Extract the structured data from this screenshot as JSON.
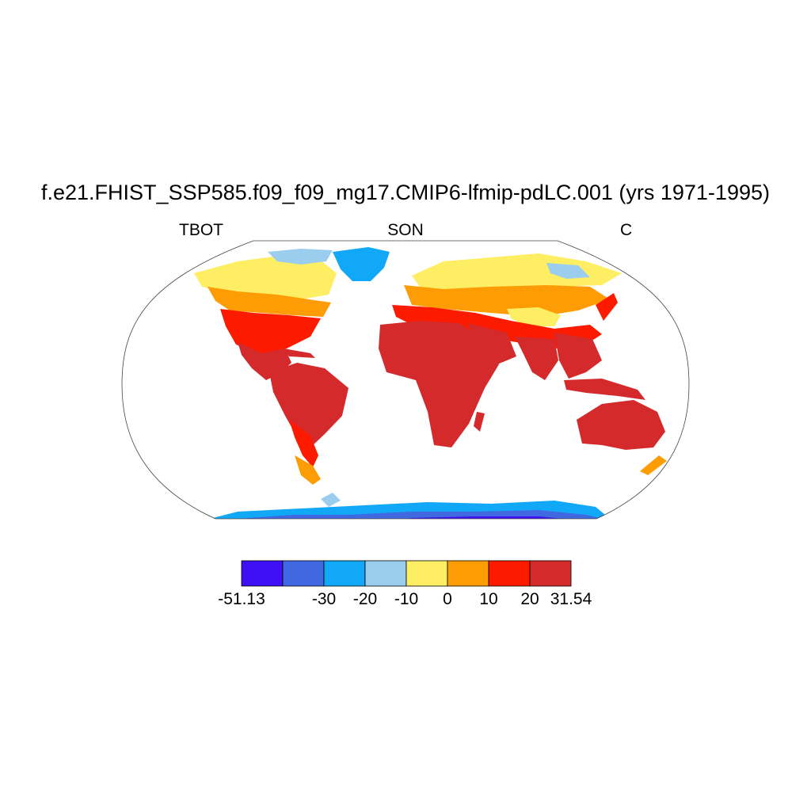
{
  "title": "f.e21.FHIST_SSP585.f09_f09_mg17.CMIP6-lfmip-pdLC.001 (yrs 1971-1995)",
  "left_string": "TBOT",
  "center_string": "SON",
  "right_string": "C",
  "colorbar": {
    "colors": [
      "#3f10f5",
      "#4068e0",
      "#12a8f8",
      "#9bcdee",
      "#fdee64",
      "#fd9c04",
      "#fd1b00",
      "#d42a2c"
    ],
    "labels": [
      "-51.13",
      "-30",
      "-20",
      "-10",
      "0",
      "10",
      "20",
      "31.54"
    ],
    "levels": [
      -51.13,
      -40,
      -30,
      -20,
      -10,
      0,
      10,
      20,
      31.54
    ]
  },
  "colors": {
    "ocean": "#ffffff",
    "coastline": "#000000"
  }
}
